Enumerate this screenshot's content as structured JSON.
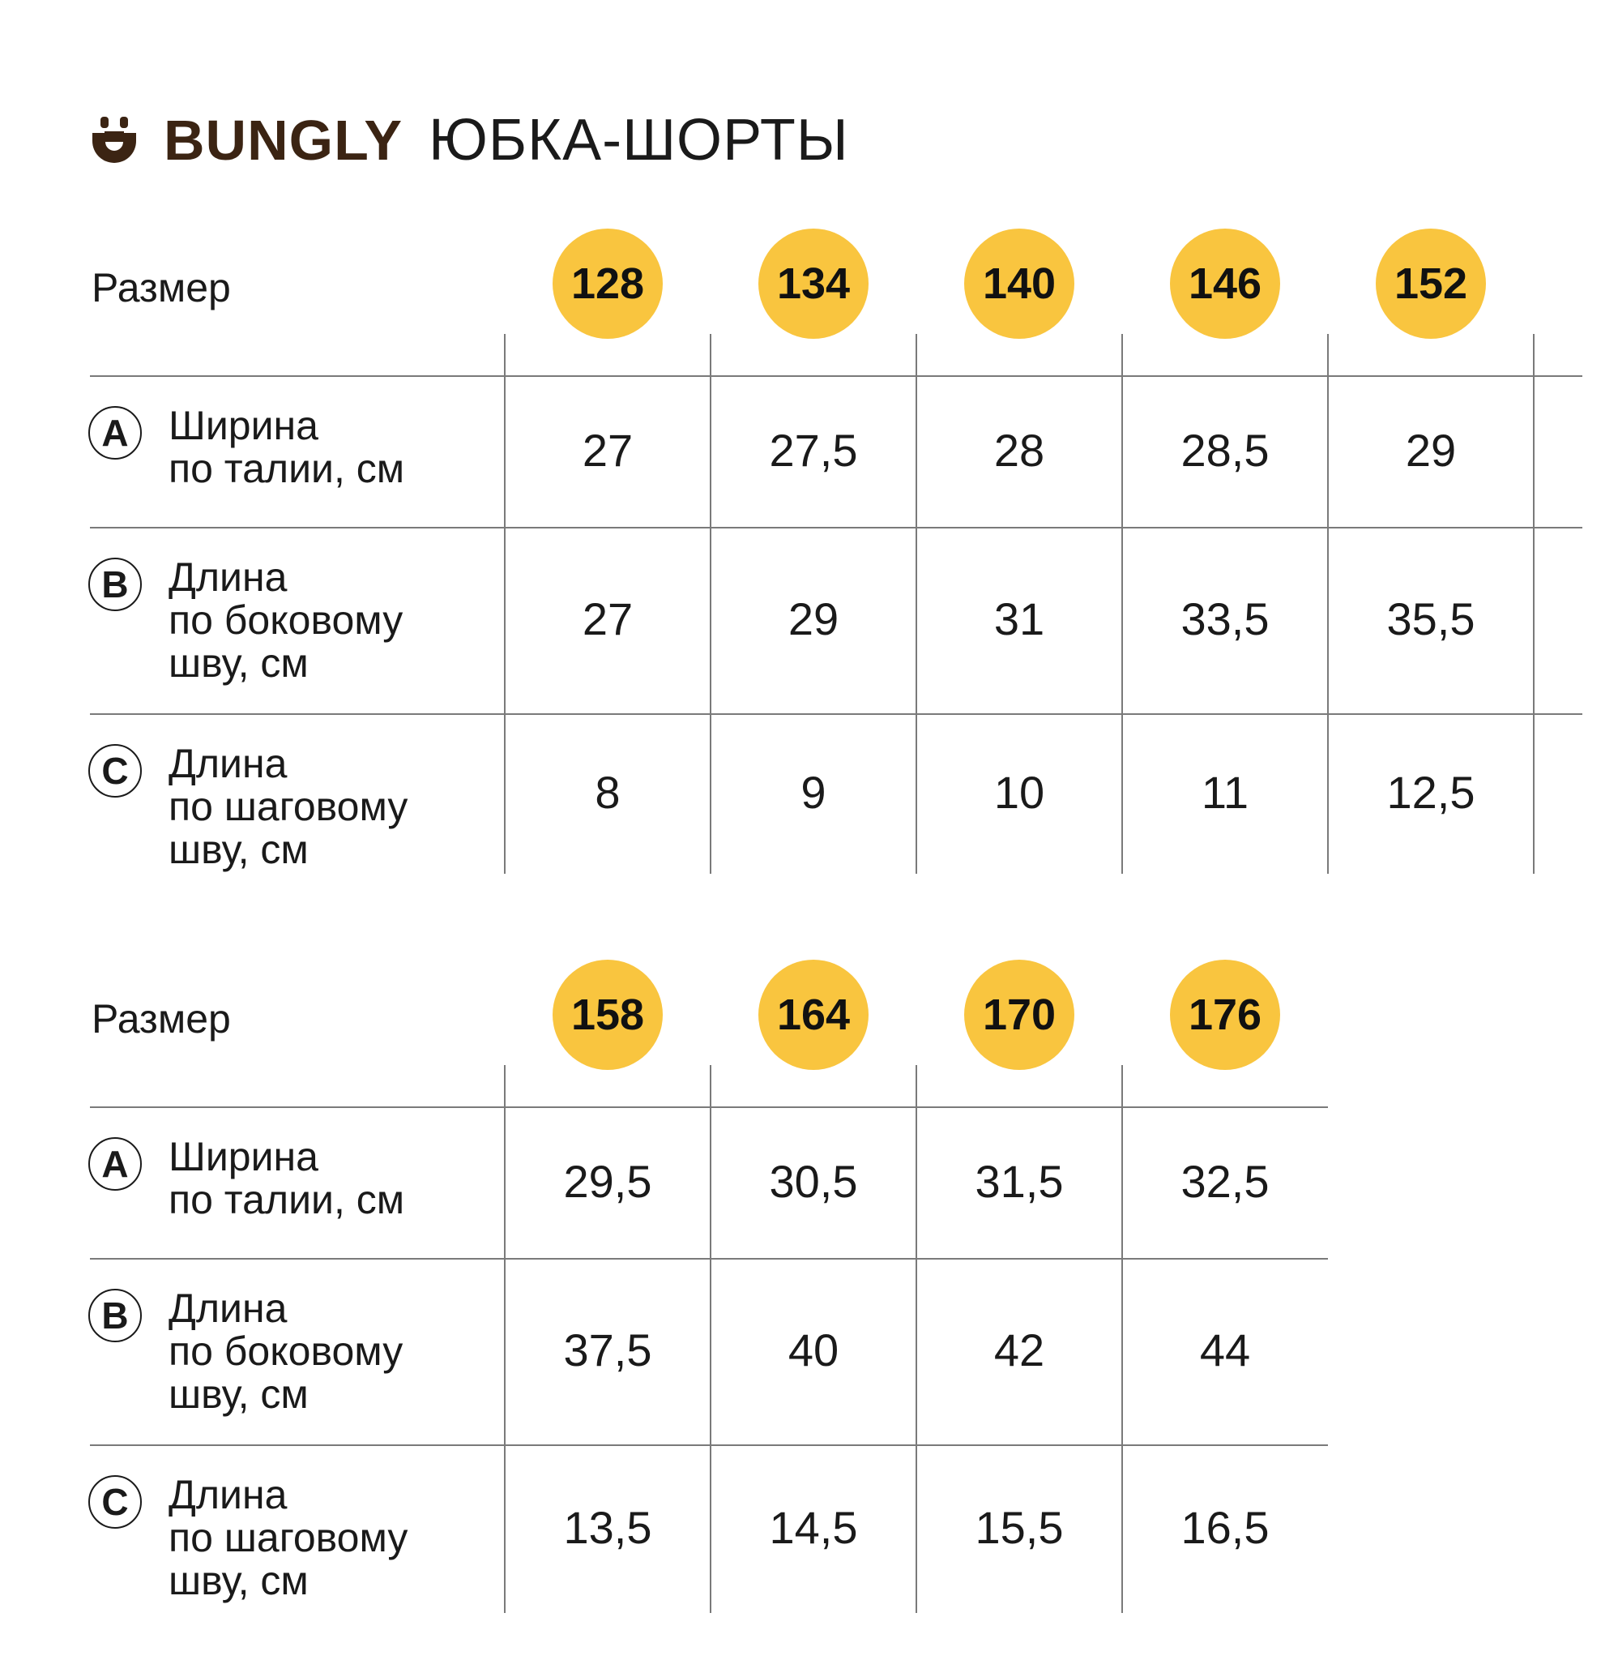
{
  "header": {
    "brand": "BUNGLY",
    "product": "ЮБКА-ШОРТЫ",
    "brand_color": "#3b2413",
    "logo_icon": "smile-cup-icon"
  },
  "accent_color": "#f9c53f",
  "tables": [
    {
      "size_label": "Размер",
      "sizes": [
        "128",
        "134",
        "140",
        "146",
        "152"
      ],
      "rows": [
        {
          "letter": "A",
          "label_lines": [
            "Ширина",
            "по талии, см"
          ],
          "values": [
            "27",
            "27,5",
            "28",
            "28,5",
            "29"
          ]
        },
        {
          "letter": "B",
          "label_lines": [
            "Длина",
            "по боковому",
            "шву, см"
          ],
          "values": [
            "27",
            "29",
            "31",
            "33,5",
            "35,5"
          ]
        },
        {
          "letter": "C",
          "label_lines": [
            "Длина",
            "по шаговому",
            "шву, см"
          ],
          "values": [
            "8",
            "9",
            "10",
            "11",
            "12,5"
          ]
        }
      ]
    },
    {
      "size_label": "Размер",
      "sizes": [
        "158",
        "164",
        "170",
        "176"
      ],
      "rows": [
        {
          "letter": "A",
          "label_lines": [
            "Ширина",
            "по талии, см"
          ],
          "values": [
            "29,5",
            "30,5",
            "31,5",
            "32,5"
          ]
        },
        {
          "letter": "B",
          "label_lines": [
            "Длина",
            "по боковому",
            "шву, см"
          ],
          "values": [
            "37,5",
            "40",
            "42",
            "44"
          ]
        },
        {
          "letter": "C",
          "label_lines": [
            "Длина",
            "по шаговому",
            "шву, см"
          ],
          "values": [
            "13,5",
            "14,5",
            "15,5",
            "16,5"
          ]
        }
      ]
    }
  ]
}
